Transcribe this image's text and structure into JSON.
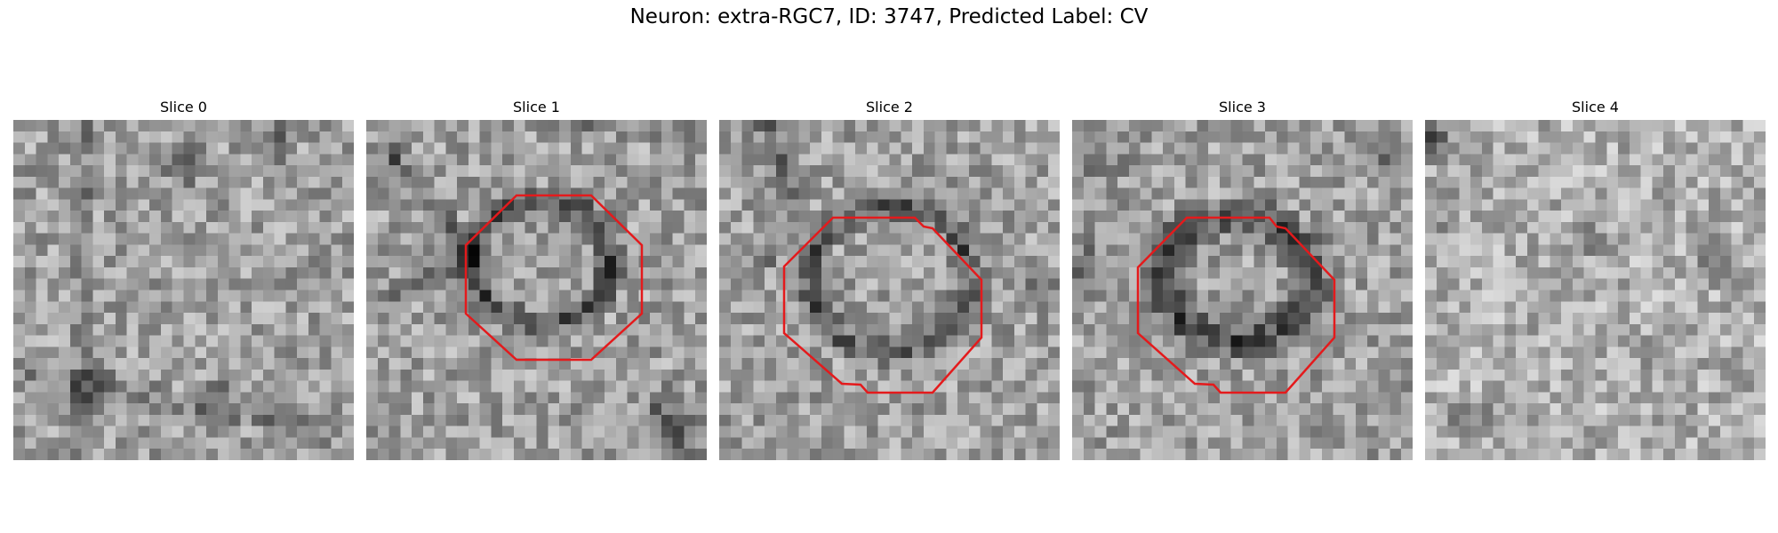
{
  "figure": {
    "title": "Neuron: extra-RGC7, ID: 3747, Predicted Label: CV"
  },
  "slices": [
    {
      "label": "Slice 0",
      "has_contour": false,
      "seed": 11,
      "features": "slice0"
    },
    {
      "label": "Slice 1",
      "has_contour": true,
      "seed": 23,
      "features": "ring_small"
    },
    {
      "label": "Slice 2",
      "has_contour": true,
      "seed": 37,
      "features": "ring_large"
    },
    {
      "label": "Slice 3",
      "has_contour": true,
      "seed": 53,
      "features": "ring_dark"
    },
    {
      "label": "Slice 4",
      "has_contour": false,
      "seed": 71,
      "features": "slice4"
    }
  ],
  "colors": {
    "contour": "#e41a1c",
    "colormap": "grayscale"
  }
}
